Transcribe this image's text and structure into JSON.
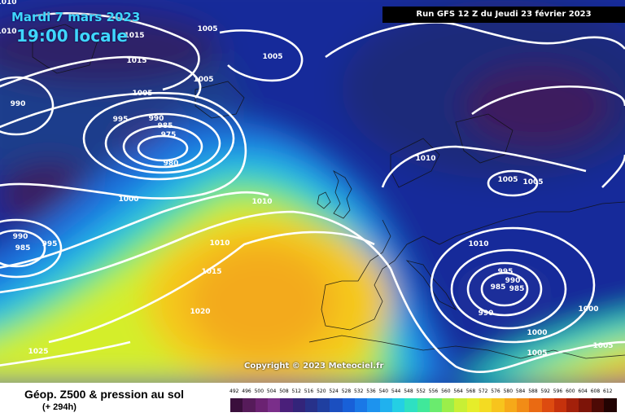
{
  "header": {
    "date": "Mardi 7 mars 2023",
    "local_time": "19:00 locale",
    "run": "Run GFS 12 Z du Jeudi 23 février 2023"
  },
  "copyright": "Copyright © 2023 Meteociel.fr",
  "footer": {
    "title": "Géop. Z500 & pression au sol",
    "subtitle": "(+ 294h)"
  },
  "isobar_labels": [
    "1010",
    "1005",
    "1015",
    "1005",
    "1005",
    "1015",
    "1010",
    "1005",
    "990",
    "995",
    "990",
    "985",
    "975",
    "980",
    "1000",
    "1010",
    "1010",
    "1005",
    "1005",
    "990",
    "985",
    "995",
    "1010",
    "1010",
    "1015",
    "995",
    "990",
    "985",
    "985",
    "990",
    "1000",
    "1000",
    "1020",
    "1005",
    "1025",
    "1005"
  ],
  "legend": {
    "ticks": [
      "492",
      "496",
      "500",
      "504",
      "508",
      "512",
      "516",
      "520",
      "524",
      "528",
      "532",
      "536",
      "540",
      "544",
      "548",
      "552",
      "556",
      "560",
      "564",
      "568",
      "572",
      "576",
      "580",
      "584",
      "588",
      "592",
      "596",
      "600",
      "604",
      "608",
      "612"
    ],
    "colors": [
      "#3a0f3c",
      "#561b5a",
      "#6b2272",
      "#7a2e8a",
      "#4a1f7a",
      "#33247a",
      "#27318a",
      "#1f3fa0",
      "#1b4fc0",
      "#1860d8",
      "#1a78e6",
      "#1d93ee",
      "#20b1ee",
      "#24cfe4",
      "#2ee0c2",
      "#40e89a",
      "#6aeb6e",
      "#9bee4a",
      "#c8ef35",
      "#e6ed2a",
      "#f4db22",
      "#f7c41d",
      "#f6a919",
      "#f28c16",
      "#ea6a12",
      "#dd4b10",
      "#c6320c",
      "#a3200a",
      "#7d1408",
      "#4d0a05",
      "#220302"
    ]
  }
}
